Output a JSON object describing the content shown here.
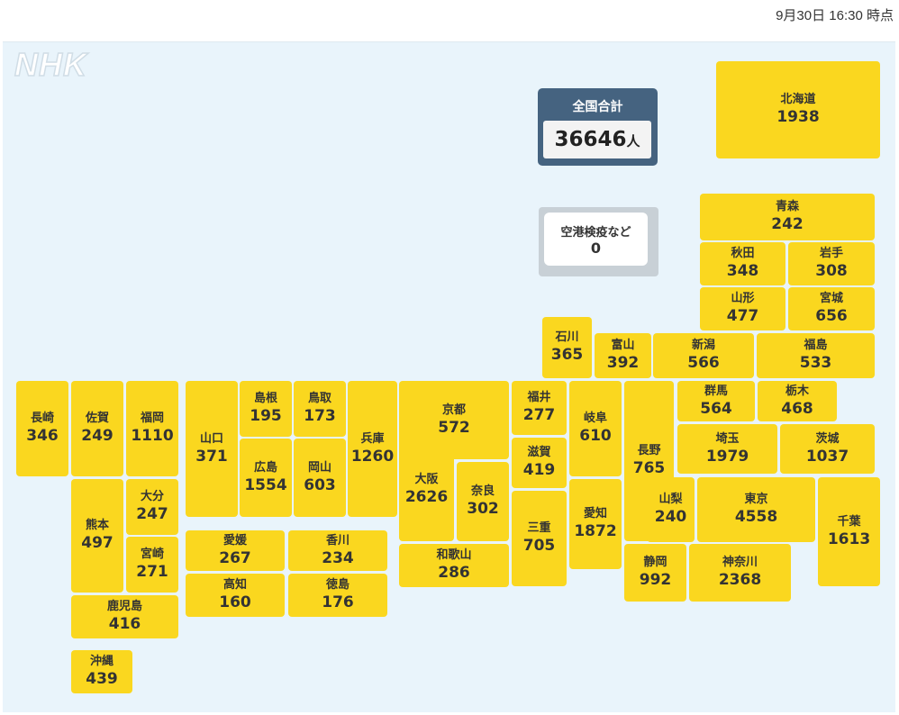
{
  "timestamp": "9月30日 16:30 時点",
  "logo_text": "NHK",
  "total": {
    "label": "全国合計",
    "value": "36646",
    "unit": "人"
  },
  "airport": {
    "name": "空港検疫など",
    "count": "0"
  },
  "prefectures": [
    {
      "id": "hokkaido",
      "name": "北海道",
      "count": "1938"
    },
    {
      "id": "aomori",
      "name": "青森",
      "count": "242"
    },
    {
      "id": "akita",
      "name": "秋田",
      "count": "348"
    },
    {
      "id": "iwate",
      "name": "岩手",
      "count": "308"
    },
    {
      "id": "yamagata",
      "name": "山形",
      "count": "477"
    },
    {
      "id": "miyagi",
      "name": "宮城",
      "count": "656"
    },
    {
      "id": "ishikawa",
      "name": "石川",
      "count": "365"
    },
    {
      "id": "toyama",
      "name": "富山",
      "count": "392"
    },
    {
      "id": "niigata",
      "name": "新潟",
      "count": "566"
    },
    {
      "id": "fukushima",
      "name": "福島",
      "count": "533"
    },
    {
      "id": "nagasaki",
      "name": "長崎",
      "count": "346"
    },
    {
      "id": "saga",
      "name": "佐賀",
      "count": "249"
    },
    {
      "id": "fukuoka",
      "name": "福岡",
      "count": "1110"
    },
    {
      "id": "yamaguchi",
      "name": "山口",
      "count": "371"
    },
    {
      "id": "shimane",
      "name": "島根",
      "count": "195"
    },
    {
      "id": "tottori",
      "name": "鳥取",
      "count": "173"
    },
    {
      "id": "hyogo",
      "name": "兵庫",
      "count": "1260"
    },
    {
      "id": "kyoto",
      "name": "京都",
      "count": "572"
    },
    {
      "id": "fukui",
      "name": "福井",
      "count": "277"
    },
    {
      "id": "gifu",
      "name": "岐阜",
      "count": "610"
    },
    {
      "id": "nagano",
      "name": "長野",
      "count": "765"
    },
    {
      "id": "gunma",
      "name": "群馬",
      "count": "564"
    },
    {
      "id": "tochigi",
      "name": "栃木",
      "count": "468"
    },
    {
      "id": "hiroshima",
      "name": "広島",
      "count": "1554"
    },
    {
      "id": "okayama",
      "name": "岡山",
      "count": "603"
    },
    {
      "id": "osaka",
      "name": "大阪",
      "count": "2626"
    },
    {
      "id": "nara",
      "name": "奈良",
      "count": "302"
    },
    {
      "id": "shiga",
      "name": "滋賀",
      "count": "419"
    },
    {
      "id": "saitama",
      "name": "埼玉",
      "count": "1979"
    },
    {
      "id": "ibaraki",
      "name": "茨城",
      "count": "1037"
    },
    {
      "id": "kumamoto",
      "name": "熊本",
      "count": "497"
    },
    {
      "id": "oita",
      "name": "大分",
      "count": "247"
    },
    {
      "id": "miyazaki",
      "name": "宮崎",
      "count": "271"
    },
    {
      "id": "ehime",
      "name": "愛媛",
      "count": "267"
    },
    {
      "id": "kagawa",
      "name": "香川",
      "count": "234"
    },
    {
      "id": "kochi",
      "name": "高知",
      "count": "160"
    },
    {
      "id": "tokushima",
      "name": "徳島",
      "count": "176"
    },
    {
      "id": "wakayama",
      "name": "和歌山",
      "count": "286"
    },
    {
      "id": "mie",
      "name": "三重",
      "count": "705"
    },
    {
      "id": "aichi",
      "name": "愛知",
      "count": "1872"
    },
    {
      "id": "yamanashi",
      "name": "山梨",
      "count": "240"
    },
    {
      "id": "tokyo",
      "name": "東京",
      "count": "4558"
    },
    {
      "id": "chiba",
      "name": "千葉",
      "count": "1613"
    },
    {
      "id": "shizuoka",
      "name": "静岡",
      "count": "992"
    },
    {
      "id": "kanagawa",
      "name": "神奈川",
      "count": "2368"
    },
    {
      "id": "kagoshima",
      "name": "鹿児島",
      "count": "416"
    },
    {
      "id": "okinawa",
      "name": "沖縄",
      "count": "439"
    }
  ]
}
